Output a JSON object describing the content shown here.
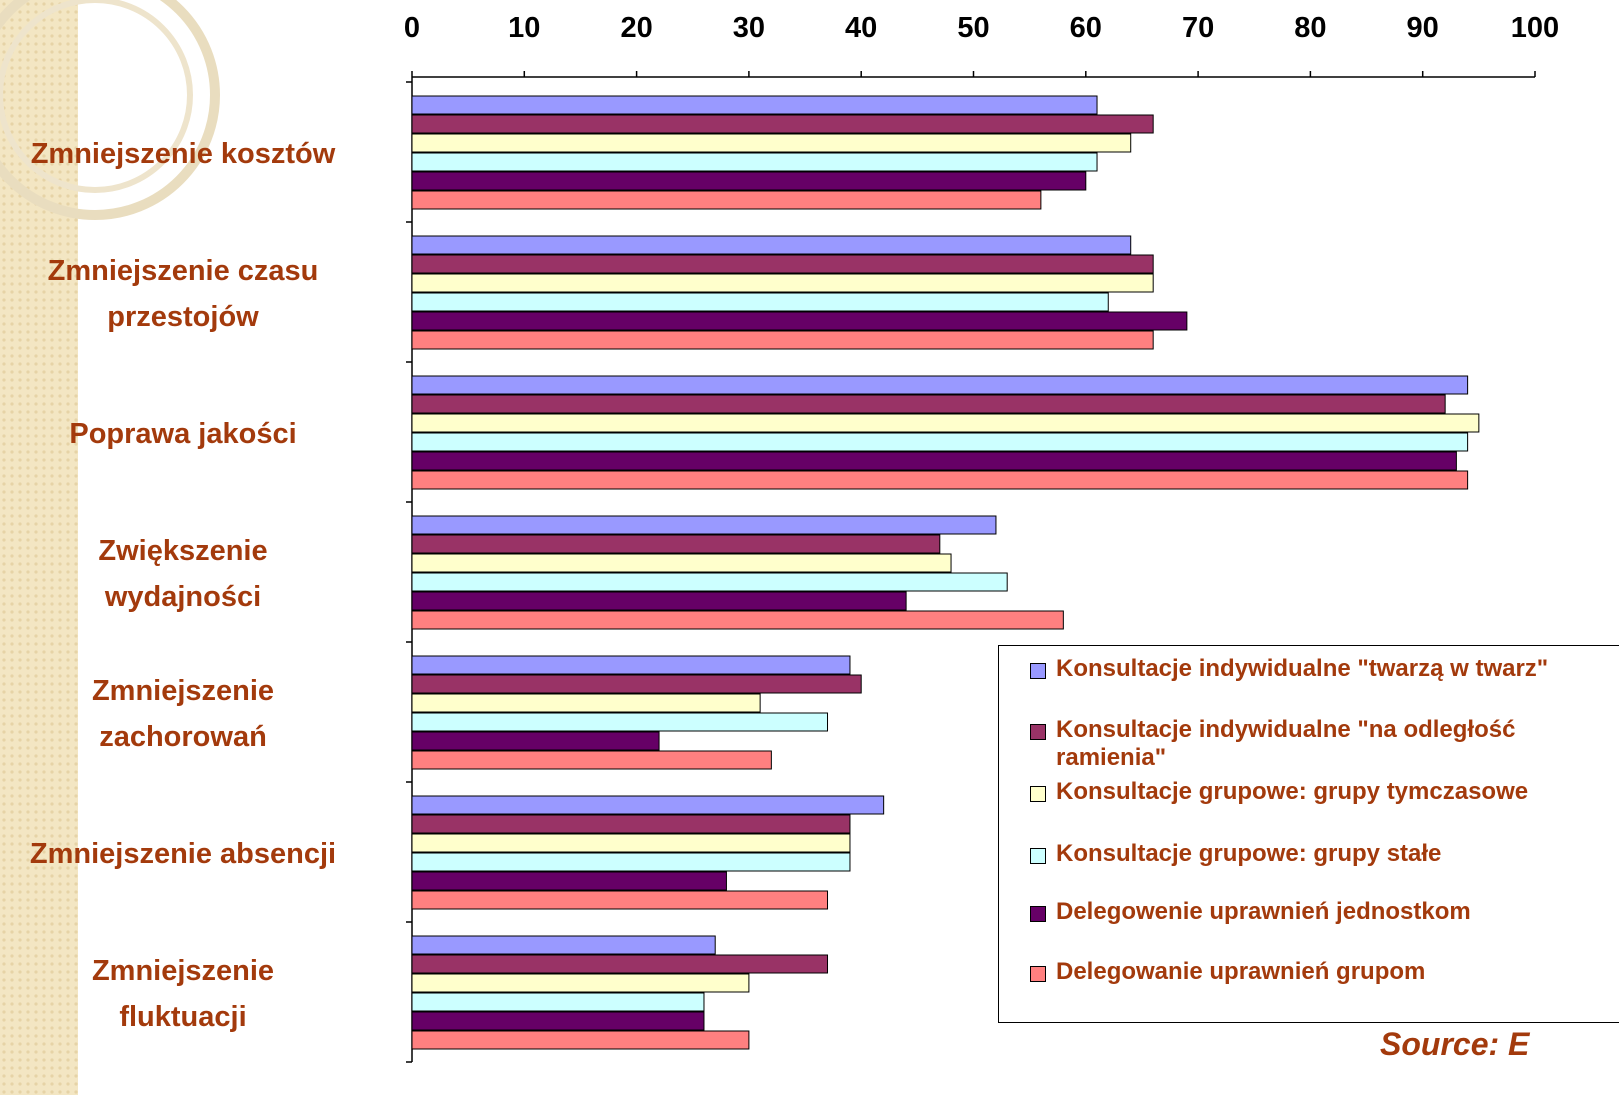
{
  "chart_data": {
    "type": "bar",
    "orientation": "horizontal",
    "categories": [
      "Zmniejszenie kosztów",
      "Zmniejszenie czasu\nprzestojów",
      "Poprawa jakości",
      "Zwiększenie\nwydajności",
      "Zmniejszenie\nzachorowań",
      "Zmniejszenie absencji",
      "Zmniejszenie\nfluktuacji"
    ],
    "series": [
      {
        "name": "Konsultacje indywidualne \"twarzą w twarz\"",
        "color": "#9999ff",
        "values": [
          61,
          64,
          94,
          52,
          39,
          42,
          27
        ]
      },
      {
        "name": "Konsultacje indywidualne \"na odległość ramienia\"",
        "color": "#993366",
        "values": [
          66,
          66,
          92,
          47,
          40,
          39,
          37
        ]
      },
      {
        "name": "Konsultacje grupowe: grupy tymczasowe",
        "color": "#ffffcc",
        "values": [
          64,
          66,
          95,
          48,
          31,
          39,
          30
        ]
      },
      {
        "name": "Konsultacje grupowe: grupy stałe",
        "color": "#ccffff",
        "values": [
          61,
          62,
          94,
          53,
          37,
          39,
          26
        ]
      },
      {
        "name": "Delegowenie uprawnień jednostkom",
        "color": "#660066",
        "values": [
          60,
          69,
          93,
          44,
          22,
          28,
          26
        ]
      },
      {
        "name": "Delegowanie uprawnień grupom",
        "color": "#ff8080",
        "values": [
          56,
          66,
          94,
          58,
          32,
          37,
          30
        ]
      }
    ],
    "xlim": [
      0,
      100
    ],
    "xticks": [
      0,
      10,
      20,
      30,
      40,
      50,
      60,
      70,
      80,
      90,
      100
    ],
    "annotation": "Source: E"
  }
}
